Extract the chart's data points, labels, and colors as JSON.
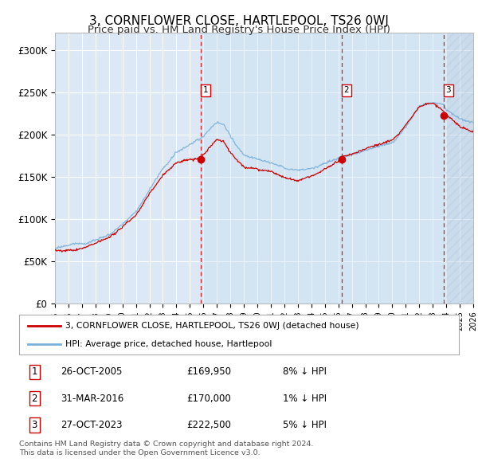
{
  "title": "3, CORNFLOWER CLOSE, HARTLEPOOL, TS26 0WJ",
  "subtitle": "Price paid vs. HM Land Registry's House Price Index (HPI)",
  "title_fontsize": 11,
  "subtitle_fontsize": 9.5,
  "ylim": [
    0,
    320000
  ],
  "yticks": [
    0,
    50000,
    100000,
    150000,
    200000,
    250000,
    300000
  ],
  "ytick_labels": [
    "£0",
    "£50K",
    "£100K",
    "£150K",
    "£200K",
    "£250K",
    "£300K"
  ],
  "background_color": "#ffffff",
  "plot_bg_color": "#dce8f5",
  "grid_color": "#ffffff",
  "hpi_color": "#7ab0d8",
  "price_color": "#cc0000",
  "ownership_shade_color": "#c8dff0",
  "transaction_dates": [
    2005.82,
    2016.25,
    2023.82
  ],
  "transaction_prices": [
    169950,
    170000,
    222500
  ],
  "transaction_labels": [
    "1",
    "2",
    "3"
  ],
  "legend_property": "3, CORNFLOWER CLOSE, HARTLEPOOL, TS26 0WJ (detached house)",
  "legend_hpi": "HPI: Average price, detached house, Hartlepool",
  "table_rows": [
    [
      "1",
      "26-OCT-2005",
      "£169,950",
      "8% ↓ HPI"
    ],
    [
      "2",
      "31-MAR-2016",
      "£170,000",
      "1% ↓ HPI"
    ],
    [
      "3",
      "27-OCT-2023",
      "£222,500",
      "5% ↓ HPI"
    ]
  ],
  "footnote": "Contains HM Land Registry data © Crown copyright and database right 2024.\nThis data is licensed under the Open Government Licence v3.0.",
  "xmin": 1995,
  "xmax": 2026,
  "hatch_start": 2024.0
}
